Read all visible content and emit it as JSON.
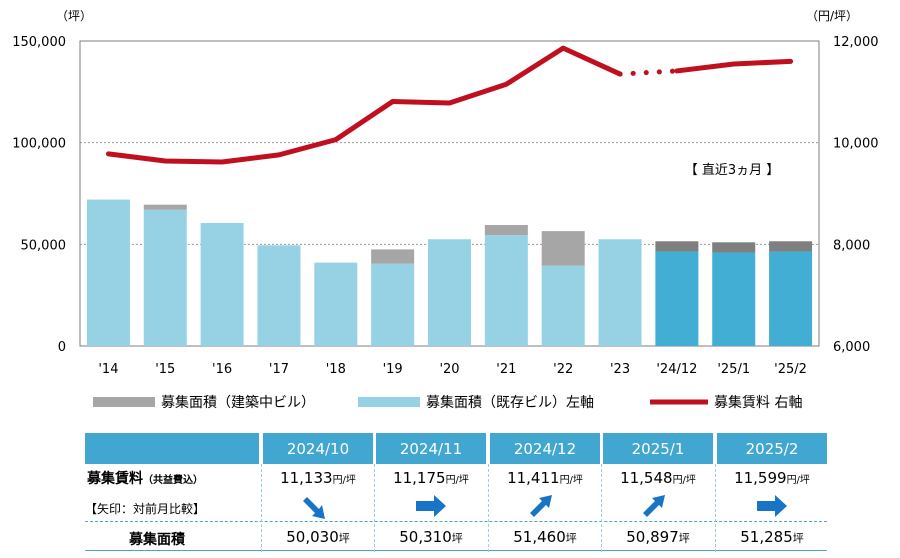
{
  "chart_data": {
    "type": "bar",
    "categories": [
      "'14",
      "'15",
      "'16",
      "'17",
      "'18",
      "'19",
      "'20",
      "'21",
      "'22",
      "'23",
      "'24/12",
      "'25/1",
      "'25/2"
    ],
    "series": [
      {
        "name": "募集面積（既存ビル）左軸",
        "axis": "left",
        "color": "#96d2e4",
        "recent_color": "#42aed4",
        "values": [
          72000,
          67000,
          60500,
          49500,
          41000,
          40500,
          52500,
          54500,
          39500,
          52500,
          46500,
          46000,
          46500
        ]
      },
      {
        "name": "募集面積（建築中ビル）",
        "axis": "left",
        "color": "#a6a6a6",
        "recent_color": "#7f7f7f",
        "values": [
          0,
          2500,
          0,
          0,
          0,
          7000,
          0,
          5000,
          17000,
          0,
          5000,
          5000,
          5000
        ]
      },
      {
        "name": "募集賃料 右軸",
        "axis": "right",
        "type": "line",
        "color": "#c0101f",
        "values": [
          9780,
          9640,
          9620,
          9760,
          10060,
          10810,
          10780,
          11150,
          11860,
          11350,
          11411,
          11548,
          11599
        ]
      }
    ],
    "recent_start_index": 10,
    "dotted_segment": [
      9,
      10
    ],
    "left_axis": {
      "unit": "（坪）",
      "ylim": [
        0,
        150000
      ],
      "ticks": [
        "0",
        "50,000",
        "100,000",
        "150,000"
      ],
      "values": [
        0,
        50000,
        100000,
        150000
      ]
    },
    "right_axis": {
      "unit": "（円/坪）",
      "ylim": [
        6000,
        12000
      ],
      "ticks": [
        "6,000",
        "8,000",
        "10,000",
        "12,000"
      ],
      "values": [
        6000,
        8000,
        10000,
        12000
      ]
    },
    "annotation": "【 直近3ヵ月 】",
    "grid": true,
    "legend_position": "bottom"
  },
  "summary": {
    "months": [
      "2024/10",
      "2024/11",
      "2024/12",
      "2025/1",
      "2025/2"
    ],
    "rent_label": "募集賃料",
    "rent_label_note": "（共益費込）",
    "arrow_note": "【矢印：対前月比較】",
    "area_label": "募集面積",
    "rent_values": [
      "11,133",
      "11,175",
      "11,411",
      "11,548",
      "11,599"
    ],
    "rent_unit": "円/坪",
    "area_values": [
      "50,030",
      "50,310",
      "51,460",
      "50,897",
      "51,285"
    ],
    "area_unit": "坪",
    "arrows": [
      "down",
      "flat",
      "up",
      "up",
      "flat"
    ],
    "arrow_color": "#1874c6"
  }
}
